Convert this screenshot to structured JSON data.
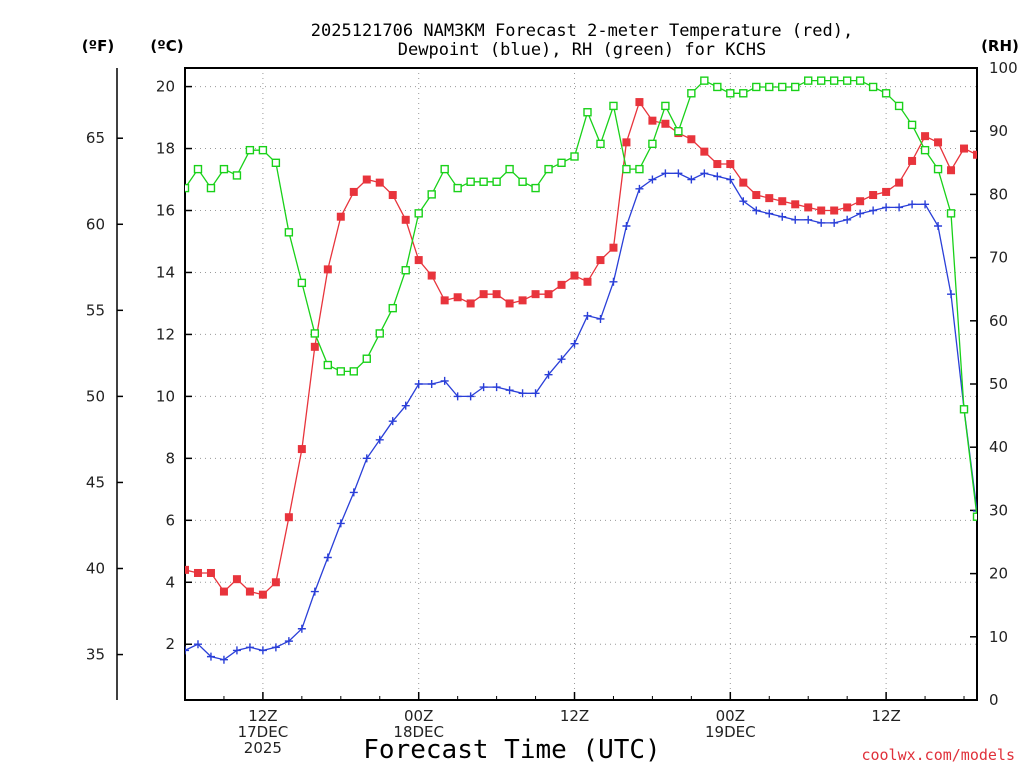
{
  "title_line1": "2025121706 NAM3KM Forecast 2-meter Temperature (red),",
  "title_line2": "Dewpoint (blue), RH (green) for KCHS",
  "unit_f": "(ºF)",
  "unit_c": "(ºC)",
  "unit_rh": "(RH)",
  "xlabel": "Forecast Time (UTC)",
  "credit": "coolwx.com/models",
  "credit_color": "#e0303a",
  "chart_data": {
    "type": "line",
    "title": "2025121706 NAM3KM Forecast 2-meter Temperature (red), Dewpoint (blue), RH (green) for KCHS",
    "xlabel": "Forecast Time (UTC)",
    "x_unit": "forecast hour",
    "xlim": [
      0,
      61
    ],
    "ylim_c": [
      0.2,
      20.6
    ],
    "ylim_rh": [
      0,
      100
    ],
    "grid": true,
    "x_ticks": [
      {
        "x": 6,
        "lines": [
          "12Z",
          "17DEC",
          "2025"
        ]
      },
      {
        "x": 18,
        "lines": [
          "00Z",
          "18DEC"
        ]
      },
      {
        "x": 30,
        "lines": [
          "12Z"
        ]
      },
      {
        "x": 42,
        "lines": [
          "00Z",
          "19DEC"
        ]
      },
      {
        "x": 54,
        "lines": [
          "12Z"
        ]
      }
    ],
    "left_ticks_f": [
      "35",
      "40",
      "45",
      "50",
      "55",
      "60",
      "65"
    ],
    "left_ticks_c": [
      "2",
      "4",
      "6",
      "8",
      "10",
      "12",
      "14",
      "16",
      "18",
      "20"
    ],
    "right_ticks_rh": [
      "0",
      "10",
      "20",
      "30",
      "40",
      "50",
      "60",
      "70",
      "80",
      "90",
      "100"
    ],
    "series": [
      {
        "key": "temp",
        "axis": "c",
        "color": "#e8343c",
        "marker": "filled-square",
        "x": [
          0,
          1,
          2,
          3,
          4,
          5,
          6,
          7,
          8,
          9,
          10,
          11,
          12,
          13,
          14,
          15,
          16,
          17,
          18,
          19,
          20,
          21,
          22,
          23,
          24,
          25,
          26,
          27,
          28,
          29,
          30,
          31,
          32,
          33,
          34,
          35,
          36,
          37,
          38,
          39,
          40,
          41,
          42,
          43,
          44,
          45,
          46,
          47,
          48,
          49,
          50,
          51,
          52,
          53,
          54,
          55,
          56,
          57,
          58,
          59,
          60,
          61
        ],
        "values": [
          4.4,
          4.3,
          4.3,
          3.7,
          4.1,
          3.7,
          3.6,
          4.0,
          6.1,
          8.3,
          11.6,
          14.1,
          15.8,
          16.6,
          17.0,
          16.9,
          16.5,
          15.7,
          14.4,
          13.9,
          13.1,
          13.2,
          13.0,
          13.3,
          13.3,
          13.0,
          13.1,
          13.3,
          13.3,
          13.6,
          13.9,
          13.7,
          14.4,
          14.8,
          18.2,
          19.5,
          18.9,
          18.8,
          18.5,
          18.3,
          17.9,
          17.5,
          17.5,
          16.9,
          16.5,
          16.4,
          16.3,
          16.2,
          16.1,
          16.0,
          16.0,
          16.1,
          16.3,
          16.5,
          16.6,
          16.9,
          17.6,
          18.4,
          18.2,
          17.3,
          18.0,
          17.8
        ]
      },
      {
        "key": "dewpoint",
        "axis": "c",
        "color": "#2a3fd8",
        "marker": "plus",
        "x": [
          0,
          1,
          2,
          3,
          4,
          5,
          6,
          7,
          8,
          9,
          10,
          11,
          12,
          13,
          14,
          15,
          16,
          17,
          18,
          19,
          20,
          21,
          22,
          23,
          24,
          25,
          26,
          27,
          28,
          29,
          30,
          31,
          32,
          33,
          34,
          35,
          36,
          37,
          38,
          39,
          40,
          41,
          42,
          43,
          44,
          45,
          46,
          47,
          48,
          49,
          50,
          51,
          52,
          53,
          54,
          55,
          56,
          57,
          58,
          59,
          60,
          61
        ],
        "values": [
          1.8,
          2.0,
          1.6,
          1.5,
          1.8,
          1.9,
          1.8,
          1.9,
          2.1,
          2.5,
          3.7,
          4.8,
          5.9,
          6.9,
          8.0,
          8.6,
          9.2,
          9.7,
          10.4,
          10.4,
          10.5,
          10.0,
          10.0,
          10.3,
          10.3,
          10.2,
          10.1,
          10.1,
          10.7,
          11.2,
          11.7,
          12.6,
          12.5,
          13.7,
          15.5,
          16.7,
          17.0,
          17.2,
          17.2,
          17.0,
          17.2,
          17.1,
          17.0,
          16.3,
          16.0,
          15.9,
          15.8,
          15.7,
          15.7,
          15.6,
          15.6,
          15.7,
          15.9,
          16.0,
          16.1,
          16.1,
          16.2,
          16.2,
          15.5,
          13.3,
          9.6,
          6.3
        ]
      },
      {
        "key": "rh",
        "axis": "rh",
        "color": "#19d119",
        "marker": "open-square",
        "x": [
          0,
          1,
          2,
          3,
          4,
          5,
          6,
          7,
          8,
          9,
          10,
          11,
          12,
          13,
          14,
          15,
          16,
          17,
          18,
          19,
          20,
          21,
          22,
          23,
          24,
          25,
          26,
          27,
          28,
          29,
          30,
          31,
          32,
          33,
          34,
          35,
          36,
          37,
          38,
          39,
          40,
          41,
          42,
          43,
          44,
          45,
          46,
          47,
          48,
          49,
          50,
          51,
          52,
          53,
          54,
          55,
          56,
          57,
          58,
          59,
          60,
          61
        ],
        "values": [
          81,
          84,
          81,
          84,
          83,
          87,
          87,
          85,
          74,
          66,
          58,
          53,
          52,
          52,
          54,
          58,
          62,
          68,
          77,
          80,
          84,
          81,
          82,
          82,
          82,
          84,
          82,
          81,
          84,
          85,
          86,
          93,
          88,
          94,
          84,
          84,
          88,
          94,
          90,
          96,
          98,
          97,
          96,
          96,
          97,
          97,
          97,
          97,
          98,
          98,
          98,
          98,
          98,
          97,
          96,
          94,
          91,
          87,
          84,
          77,
          46,
          29
        ]
      }
    ]
  }
}
